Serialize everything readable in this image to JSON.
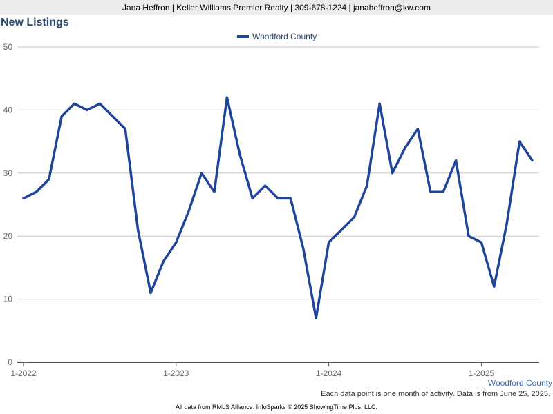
{
  "header": {
    "contact_line": "Jana Heffron | Keller Williams Premier Realty | 309-678-1224 | janaheffron@kw.com"
  },
  "footer": {
    "series_label": "Woodford County",
    "note": "Each data point is one month of activity. Data is from June 25, 2025.",
    "credits": "All data from RMLS Alliance. InfoSparks © 2025 ShowingTime Plus, LLC."
  },
  "colors": {
    "series": "#1f449c",
    "grid": "#c8c8c8",
    "axis": "#555555",
    "title": "#2b4a75"
  },
  "chart_data": {
    "type": "line",
    "title": "New Listings",
    "xlabel": "",
    "ylabel": "",
    "ylim": [
      0,
      50
    ],
    "yticks": [
      0,
      10,
      20,
      30,
      40,
      50
    ],
    "grid": true,
    "legend": "top-center",
    "x_tick_labels": [
      "1-2022",
      "1-2023",
      "1-2024",
      "1-2025"
    ],
    "x": [
      "2022-01",
      "2022-02",
      "2022-03",
      "2022-04",
      "2022-05",
      "2022-06",
      "2022-07",
      "2022-08",
      "2022-09",
      "2022-10",
      "2022-11",
      "2022-12",
      "2023-01",
      "2023-02",
      "2023-03",
      "2023-04",
      "2023-05",
      "2023-06",
      "2023-07",
      "2023-08",
      "2023-09",
      "2023-10",
      "2023-11",
      "2023-12",
      "2024-01",
      "2024-02",
      "2024-03",
      "2024-04",
      "2024-05",
      "2024-06",
      "2024-07",
      "2024-08",
      "2024-09",
      "2024-10",
      "2024-11",
      "2024-12",
      "2025-01",
      "2025-02",
      "2025-03",
      "2025-04",
      "2025-05"
    ],
    "series": [
      {
        "name": "Woodford County",
        "values": [
          26,
          27,
          29,
          39,
          41,
          40,
          41,
          39,
          37,
          21,
          11,
          16,
          19,
          24,
          30,
          27,
          42,
          33,
          26,
          28,
          26,
          26,
          18,
          7,
          19,
          21,
          23,
          28,
          41,
          30,
          34,
          37,
          27,
          27,
          32,
          20,
          19,
          12,
          22,
          35,
          32
        ]
      }
    ]
  }
}
